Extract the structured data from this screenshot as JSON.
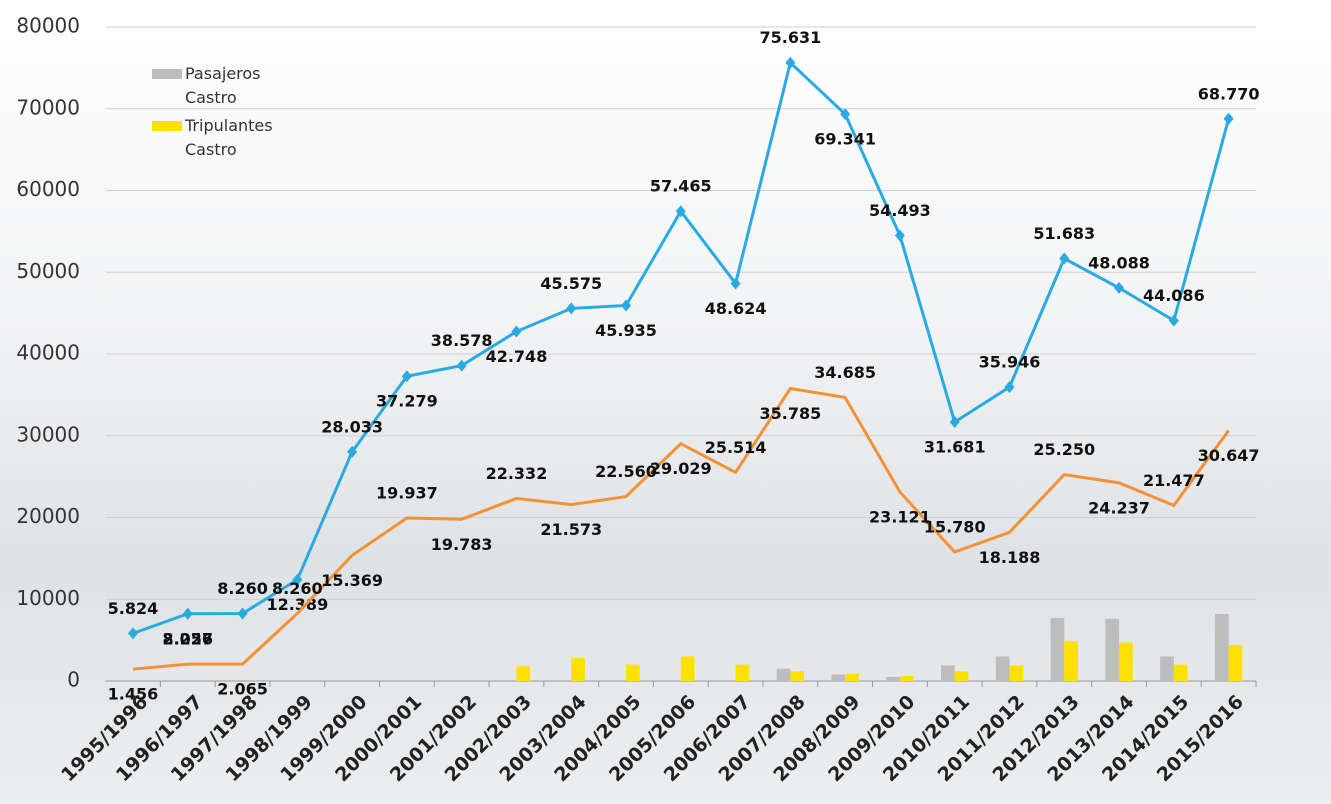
{
  "chart_data": {
    "type": "line",
    "categories": [
      "1995/1996",
      "1996/1997",
      "1997/1998",
      "1998/1999",
      "1999/2000",
      "2000/2001",
      "2001/2002",
      "2002/2003",
      "2003/2004",
      "2004/2005",
      "2005/2006",
      "2006/2007",
      "2007/2008",
      "2008/2009",
      "2009/2010",
      "2010/2011",
      "2011/2012",
      "2012/2013",
      "2013/2014",
      "2014/2015",
      "2015/2016"
    ],
    "series": [
      {
        "color": "#29abe2",
        "values": [
          5824,
          8226,
          8260,
          12389,
          28033,
          37279,
          38578,
          42748,
          45575,
          45935,
          57465,
          48624,
          75631,
          69341,
          54493,
          31681,
          35946,
          51683,
          48088,
          44086,
          68770
        ],
        "value_labels": [
          "5.824",
          "8.226",
          "8.260",
          "12.389",
          "28.033",
          "37.279",
          "38.578",
          "42.748",
          "45.575",
          "45.935",
          "57.465",
          "48.624",
          "75.631",
          "69.341",
          "54.493",
          "31.681",
          "35.946",
          "51.683",
          "48.088",
          "44.086",
          "68.770"
        ]
      },
      {
        "color": "#f39234",
        "values": [
          1456,
          2057,
          2065,
          8260,
          15369,
          19937,
          19783,
          22332,
          21573,
          22560,
          29029,
          25514,
          35785,
          34685,
          23121,
          15780,
          18188,
          25250,
          24237,
          21477,
          30647
        ],
        "value_labels": [
          "1.456",
          "2.057",
          "2.065",
          "8.260",
          "15.369",
          "19.937",
          "19.783",
          "22.332",
          "21.573",
          "22.560",
          "29.029",
          "25.514",
          "35.785",
          "34.685",
          "23.121",
          "15.780",
          "18.188",
          "25.250",
          "24.237",
          "21.477",
          "30.647"
        ]
      },
      {
        "name": "Pasajeros Castro",
        "kind": "bar",
        "color": "#bdbdbd",
        "values": [
          0,
          0,
          0,
          0,
          0,
          0,
          0,
          0,
          0,
          0,
          0,
          0,
          1500,
          800,
          500,
          1900,
          3000,
          7700,
          7600,
          3000,
          8200
        ]
      },
      {
        "name": "Tripulantes Castro",
        "kind": "bar",
        "color": "#ffe000",
        "values": [
          0,
          0,
          0,
          0,
          0,
          0,
          0,
          1800,
          2800,
          2000,
          3000,
          2000,
          1200,
          900,
          600,
          1200,
          1900,
          4900,
          4700,
          2000,
          4400
        ]
      }
    ],
    "ylim": [
      0,
      80000
    ],
    "yticks": [
      0,
      10000,
      20000,
      30000,
      40000,
      50000,
      60000,
      70000,
      80000
    ],
    "grid": true
  }
}
